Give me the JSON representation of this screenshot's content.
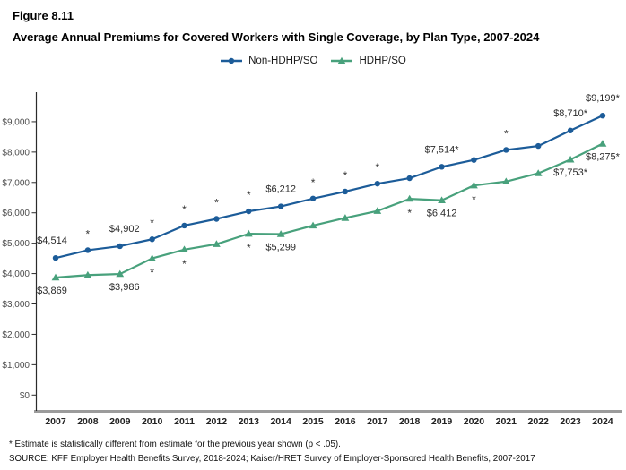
{
  "header": {
    "figure_label": "Figure 8.11",
    "title": "Average Annual Premiums for Covered Workers with Single Coverage, by Plan Type, 2007-2024"
  },
  "legend": {
    "items": [
      {
        "label": "Non-HDHP/SO",
        "color": "#1c5c99",
        "marker": "circle"
      },
      {
        "label": "HDHP/SO",
        "color": "#48a17c",
        "marker": "triangle"
      }
    ]
  },
  "footnotes": {
    "line1": "* Estimate is statistically different from estimate for the previous year shown (p < .05).",
    "line2": "SOURCE: KFF Employer Health Benefits Survey, 2018-2024; Kaiser/HRET Survey of Employer-Sponsored Health Benefits, 2007-2017"
  },
  "chart_data": {
    "type": "line",
    "title": "Average Annual Premiums for Covered Workers with Single Coverage, by Plan Type, 2007-2024",
    "xlabel": "",
    "ylabel": "",
    "x": [
      2007,
      2008,
      2009,
      2010,
      2011,
      2012,
      2013,
      2014,
      2015,
      2016,
      2017,
      2018,
      2019,
      2020,
      2021,
      2022,
      2023,
      2024
    ],
    "x_tick_labels": [
      "2007",
      "2008",
      "2009",
      "2010",
      "2011",
      "2012",
      "2013",
      "2014",
      "2015",
      "2016",
      "2017",
      "2018",
      "2019",
      "2020",
      "2021",
      "2022",
      "2023",
      "2024"
    ],
    "ylim": [
      0,
      9500
    ],
    "y_ticks": [
      {
        "value": 0,
        "label": "$0"
      },
      {
        "value": 1000,
        "label": "$1,000"
      },
      {
        "value": 2000,
        "label": "$2,000"
      },
      {
        "value": 3000,
        "label": "$3,000"
      },
      {
        "value": 4000,
        "label": "$4,000"
      },
      {
        "value": 5000,
        "label": "$5,000"
      },
      {
        "value": 6000,
        "label": "$6,000"
      },
      {
        "value": 7000,
        "label": "$7,000"
      },
      {
        "value": 8000,
        "label": "$8,000"
      },
      {
        "value": 9000,
        "label": "$9,000"
      }
    ],
    "grid": false,
    "legend_position": "top",
    "series": [
      {
        "name": "Non-HDHP/SO",
        "color": "#1c5c99",
        "marker": "circle",
        "label_side": "above",
        "values": [
          4514,
          4770,
          4902,
          5130,
          5580,
          5800,
          6050,
          6212,
          6470,
          6700,
          6960,
          7140,
          7514,
          7740,
          8070,
          8200,
          8710,
          9199
        ],
        "point_labels": {
          "2007": "$4,514",
          "2009": "$4,902",
          "2014": "$6,212",
          "2019": "$7,514*",
          "2023": "$8,710*",
          "2024": "$9,199*"
        },
        "asterisk_years": [
          2008,
          2010,
          2011,
          2012,
          2013,
          2015,
          2016,
          2017,
          2021
        ]
      },
      {
        "name": "HDHP/SO",
        "color": "#48a17c",
        "marker": "triangle",
        "label_side": "below",
        "values": [
          3869,
          3950,
          3986,
          4500,
          4790,
          4970,
          5310,
          5299,
          5580,
          5830,
          6060,
          6460,
          6412,
          6900,
          7030,
          7300,
          7753,
          8275
        ],
        "point_labels": {
          "2007": "$3,869",
          "2009": "$3,986",
          "2014": "$5,299",
          "2019": "$6,412",
          "2023": "$7,753*",
          "2024": "$8,275*"
        },
        "asterisk_years": [
          2010,
          2011,
          2013,
          2018,
          2020
        ]
      }
    ]
  }
}
